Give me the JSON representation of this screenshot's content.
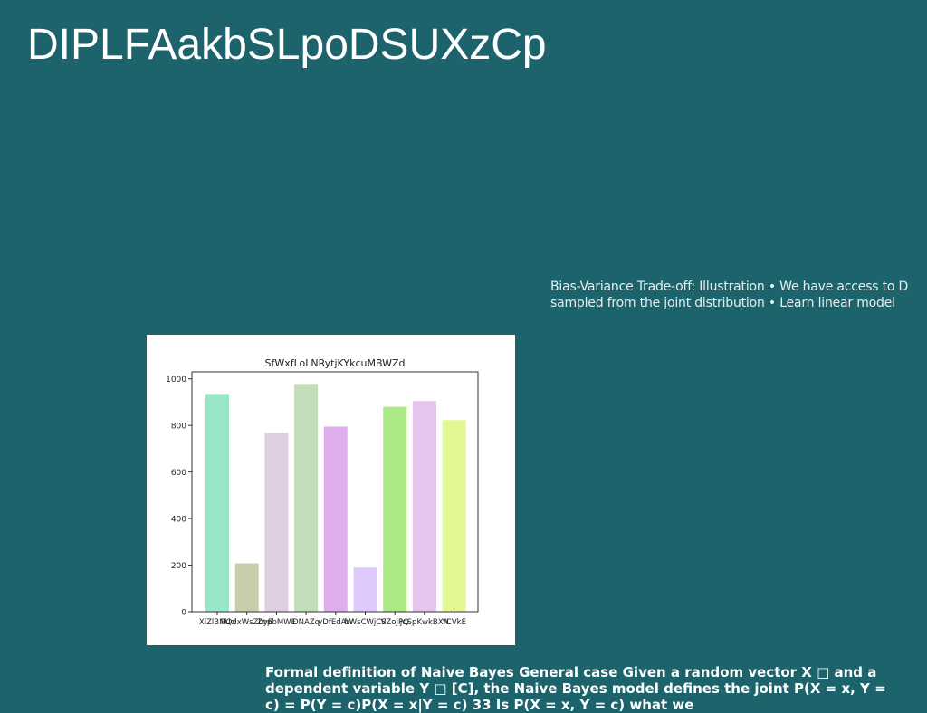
{
  "slide": {
    "title": "DIPLFAakbSLpoDSUXzCp",
    "side_text": "Bias-Variance Trade-off: Illustration • We have access to D sampled from the joint distribution • Learn linear model",
    "body_text": "Formal definition of Naive Bayes General case Given a random vector X □ and a dependent variable Y □ [C], the Naive Bayes model defines the joint P(X = x, Y = c) = P(Y = c)P(X = x|Y = c) 33 Is P(X = x, Y = c) what we"
  },
  "chart_data": {
    "type": "bar",
    "title": "SfWxfLoLNRytjKYkcuMBWZd",
    "xlabel": "",
    "ylabel": "",
    "ylim": [
      0,
      1030
    ],
    "yticks": [
      0,
      200,
      400,
      600,
      800,
      1000
    ],
    "grid": false,
    "categories": [
      "XlZlBNUd",
      "RQdxWsZbyB",
      "ZbpbMWE",
      "DNAZq",
      "yDfEdAW",
      "bWsCWjCS",
      "VZoJPQ",
      "jqSpKwkBXN",
      "YCVkE"
    ],
    "values": [
      935,
      208,
      768,
      978,
      795,
      190,
      880,
      905,
      823
    ],
    "colors": [
      "#97e6c7",
      "#c9ceaa",
      "#dfcde1",
      "#c2ddb9",
      "#dfaeed",
      "#e0c9fd",
      "#abe985",
      "#e6c5ef",
      "#e1f895"
    ]
  }
}
